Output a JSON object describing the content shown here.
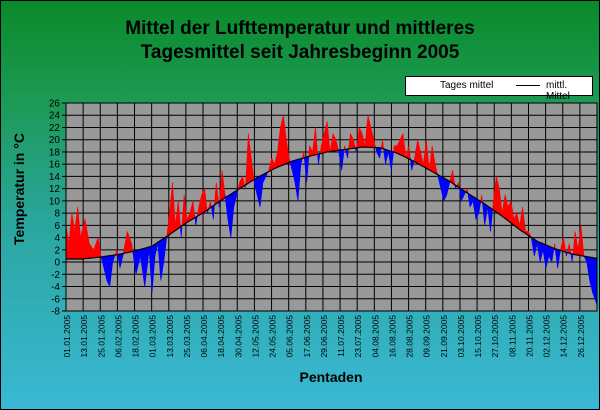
{
  "chart_data": {
    "type": "line",
    "title": "Mittel der Lufttemperatur und mittleres Tagesmittel seit Jahresbeginn 2005",
    "title_lines": [
      "Mittel der Lufttemperatur und mittleres",
      "Tagesmittel seit Jahresbeginn 2005"
    ],
    "xlabel": "Pentaden",
    "ylabel": "Temperatur in °C",
    "ylim": [
      -8,
      26
    ],
    "yticks": [
      -8,
      -6,
      -4,
      -2,
      0,
      2,
      4,
      6,
      8,
      10,
      12,
      14,
      16,
      18,
      20,
      22,
      24,
      26
    ],
    "x_tick_labels": [
      "01.01.2005",
      "13.01.2005",
      "25.01.2005",
      "06.02.2005",
      "18.02.2005",
      "01.03.2005",
      "13.03.2005",
      "25.03.2005",
      "06.04.2005",
      "18.04.2005",
      "30.04.2005",
      "12.05.2005",
      "24.05.2005",
      "05.06.2005",
      "17.06.2005",
      "29.06.2005",
      "11.07.2005",
      "23.07.2005",
      "04.08.2005",
      "16.08.2005",
      "28.08.2005",
      "09.09.2005",
      "21.09.2005",
      "03.10.2005",
      "15.10.2005",
      "27.10.2005",
      "08.11.2005",
      "20.11.2005",
      "02.12.2005",
      "14.12.2005",
      "26.12.2005"
    ],
    "grid": true,
    "legend": {
      "position": "top-right",
      "entries": [
        "Tages mittel",
        "mittl. Mittel"
      ]
    },
    "colors": {
      "above": "#ff0000",
      "below": "#0000ff",
      "mean": "#000000",
      "plot_bg": "#999999",
      "grid": "#000000"
    },
    "series": [
      {
        "name": "mittl. Mittel",
        "day": [
          1,
          12,
          24,
          36,
          48,
          60,
          72,
          84,
          96,
          108,
          120,
          132,
          144,
          156,
          168,
          180,
          192,
          204,
          216,
          228,
          240,
          252,
          264,
          276,
          288,
          300,
          312,
          324,
          336,
          348,
          365
        ],
        "values": [
          0.5,
          0.5,
          0.8,
          1.2,
          1.8,
          2.6,
          4.5,
          6.5,
          8.2,
          10.2,
          12.0,
          13.8,
          15.3,
          16.5,
          17.3,
          18.0,
          18.4,
          18.8,
          18.7,
          17.8,
          16.4,
          14.8,
          13.2,
          11.3,
          9.5,
          7.5,
          5.3,
          3.4,
          2.2,
          1.3,
          0.6
        ]
      },
      {
        "name": "Tages mittel",
        "day": [
          1,
          3,
          5,
          7,
          9,
          11,
          14,
          17,
          20,
          23,
          25,
          27,
          29,
          31,
          33,
          36,
          38,
          40,
          43,
          46,
          49,
          52,
          55,
          58,
          60,
          62,
          64,
          66,
          68,
          70,
          72,
          74,
          76,
          78,
          80,
          82,
          84,
          86,
          88,
          90,
          92,
          94,
          96,
          98,
          100,
          102,
          104,
          106,
          108,
          110,
          112,
          114,
          116,
          118,
          120,
          122,
          124,
          126,
          128,
          130,
          132,
          134,
          136,
          138,
          140,
          142,
          144,
          146,
          148,
          150,
          152,
          154,
          156,
          158,
          160,
          162,
          164,
          166,
          168,
          170,
          172,
          174,
          176,
          178,
          180,
          182,
          184,
          186,
          188,
          190,
          192,
          194,
          196,
          198,
          200,
          202,
          204,
          206,
          208,
          210,
          212,
          214,
          216,
          218,
          220,
          222,
          224,
          226,
          228,
          230,
          232,
          234,
          236,
          238,
          240,
          242,
          244,
          246,
          248,
          250,
          252,
          254,
          256,
          258,
          260,
          262,
          264,
          266,
          268,
          270,
          272,
          274,
          276,
          278,
          280,
          282,
          284,
          286,
          288,
          290,
          292,
          294,
          296,
          298,
          300,
          302,
          304,
          306,
          308,
          310,
          312,
          314,
          316,
          318,
          320,
          322,
          324,
          326,
          328,
          330,
          332,
          334,
          336,
          338,
          340,
          342,
          344,
          346,
          348,
          350,
          352,
          354,
          356,
          358,
          360,
          362,
          365
        ],
        "values": [
          6,
          3,
          8,
          5,
          9,
          4,
          7,
          3,
          2,
          4,
          1,
          -1,
          -3,
          -4,
          0,
          2,
          -1,
          1,
          5,
          3,
          -2,
          1,
          -4,
          2,
          -5,
          1,
          3,
          -3,
          0,
          4,
          8,
          13,
          6,
          10,
          4,
          11,
          7,
          8,
          10,
          6,
          9,
          11,
          12,
          8,
          10,
          7,
          13,
          9,
          15,
          11,
          7,
          4,
          9,
          11,
          13,
          14,
          12,
          21,
          17,
          13,
          11,
          9,
          13,
          14,
          15,
          17,
          16,
          18,
          22,
          24,
          20,
          17,
          15,
          13,
          10,
          16,
          18,
          13,
          19,
          18,
          22,
          16,
          19,
          21,
          23,
          18,
          21,
          20,
          18,
          15,
          19,
          17,
          21,
          20,
          18,
          22,
          21,
          19,
          24,
          22,
          20,
          18,
          17,
          20,
          16,
          18,
          15,
          19,
          19,
          20,
          21,
          17,
          19,
          15,
          17,
          20,
          18,
          16,
          20,
          15,
          19,
          16,
          14,
          12,
          10,
          11,
          13,
          15,
          12,
          13,
          10,
          11,
          12,
          9,
          10,
          7,
          8,
          11,
          6,
          9,
          5,
          10,
          14,
          12,
          8,
          11,
          9,
          10,
          7,
          8,
          6,
          9,
          5,
          5,
          4,
          1,
          3,
          0,
          2,
          -1,
          1,
          0,
          3,
          -1,
          2,
          4,
          1,
          3,
          0,
          5,
          2,
          6,
          1,
          0,
          -3,
          -5,
          -7
        ]
      }
    ]
  }
}
